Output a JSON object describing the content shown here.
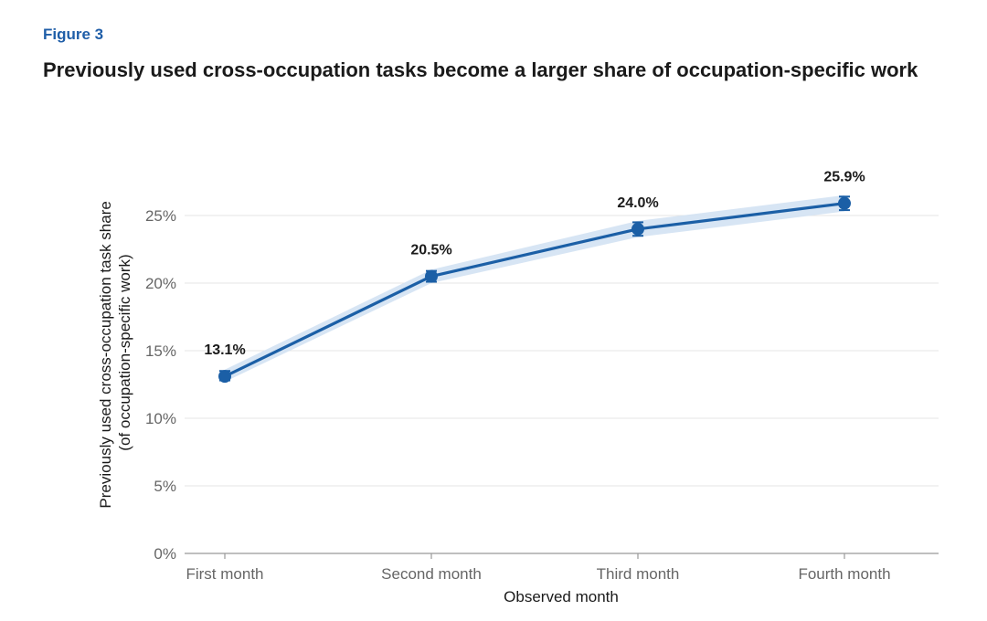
{
  "figure": {
    "label": "Figure 3",
    "title": "Previously used cross-occupation tasks become a larger share of occupation-specific work"
  },
  "colors": {
    "label_blue": "#1f5ea8",
    "line": "#1b5fa6",
    "band": "#d3e2f3",
    "grid": "#e6e6e6",
    "axis": "#999999"
  },
  "chart_data": {
    "type": "line",
    "categories": [
      "First month",
      "Second month",
      "Third month",
      "Fourth month"
    ],
    "values": [
      13.1,
      20.5,
      24.0,
      25.9
    ],
    "data_labels": [
      "13.1%",
      "20.5%",
      "24.0%",
      "25.9%"
    ],
    "error_low": [
      12.8,
      20.1,
      23.5,
      25.4
    ],
    "error_high": [
      13.5,
      20.9,
      24.5,
      26.4
    ],
    "band_low": [
      12.7,
      20.0,
      23.4,
      25.3
    ],
    "band_high": [
      13.6,
      21.0,
      24.6,
      26.5
    ],
    "ylim": [
      0,
      25
    ],
    "yticks": [
      0,
      5,
      10,
      15,
      20,
      25
    ],
    "ytick_labels": [
      "0%",
      "5%",
      "10%",
      "15%",
      "20%",
      "25%"
    ],
    "xlabel": "Observed month",
    "ylabel_line1": "Previously used cross-occupation task share",
    "ylabel_line2": "(of occupation-specific work)",
    "grid": true,
    "legend": "none"
  }
}
